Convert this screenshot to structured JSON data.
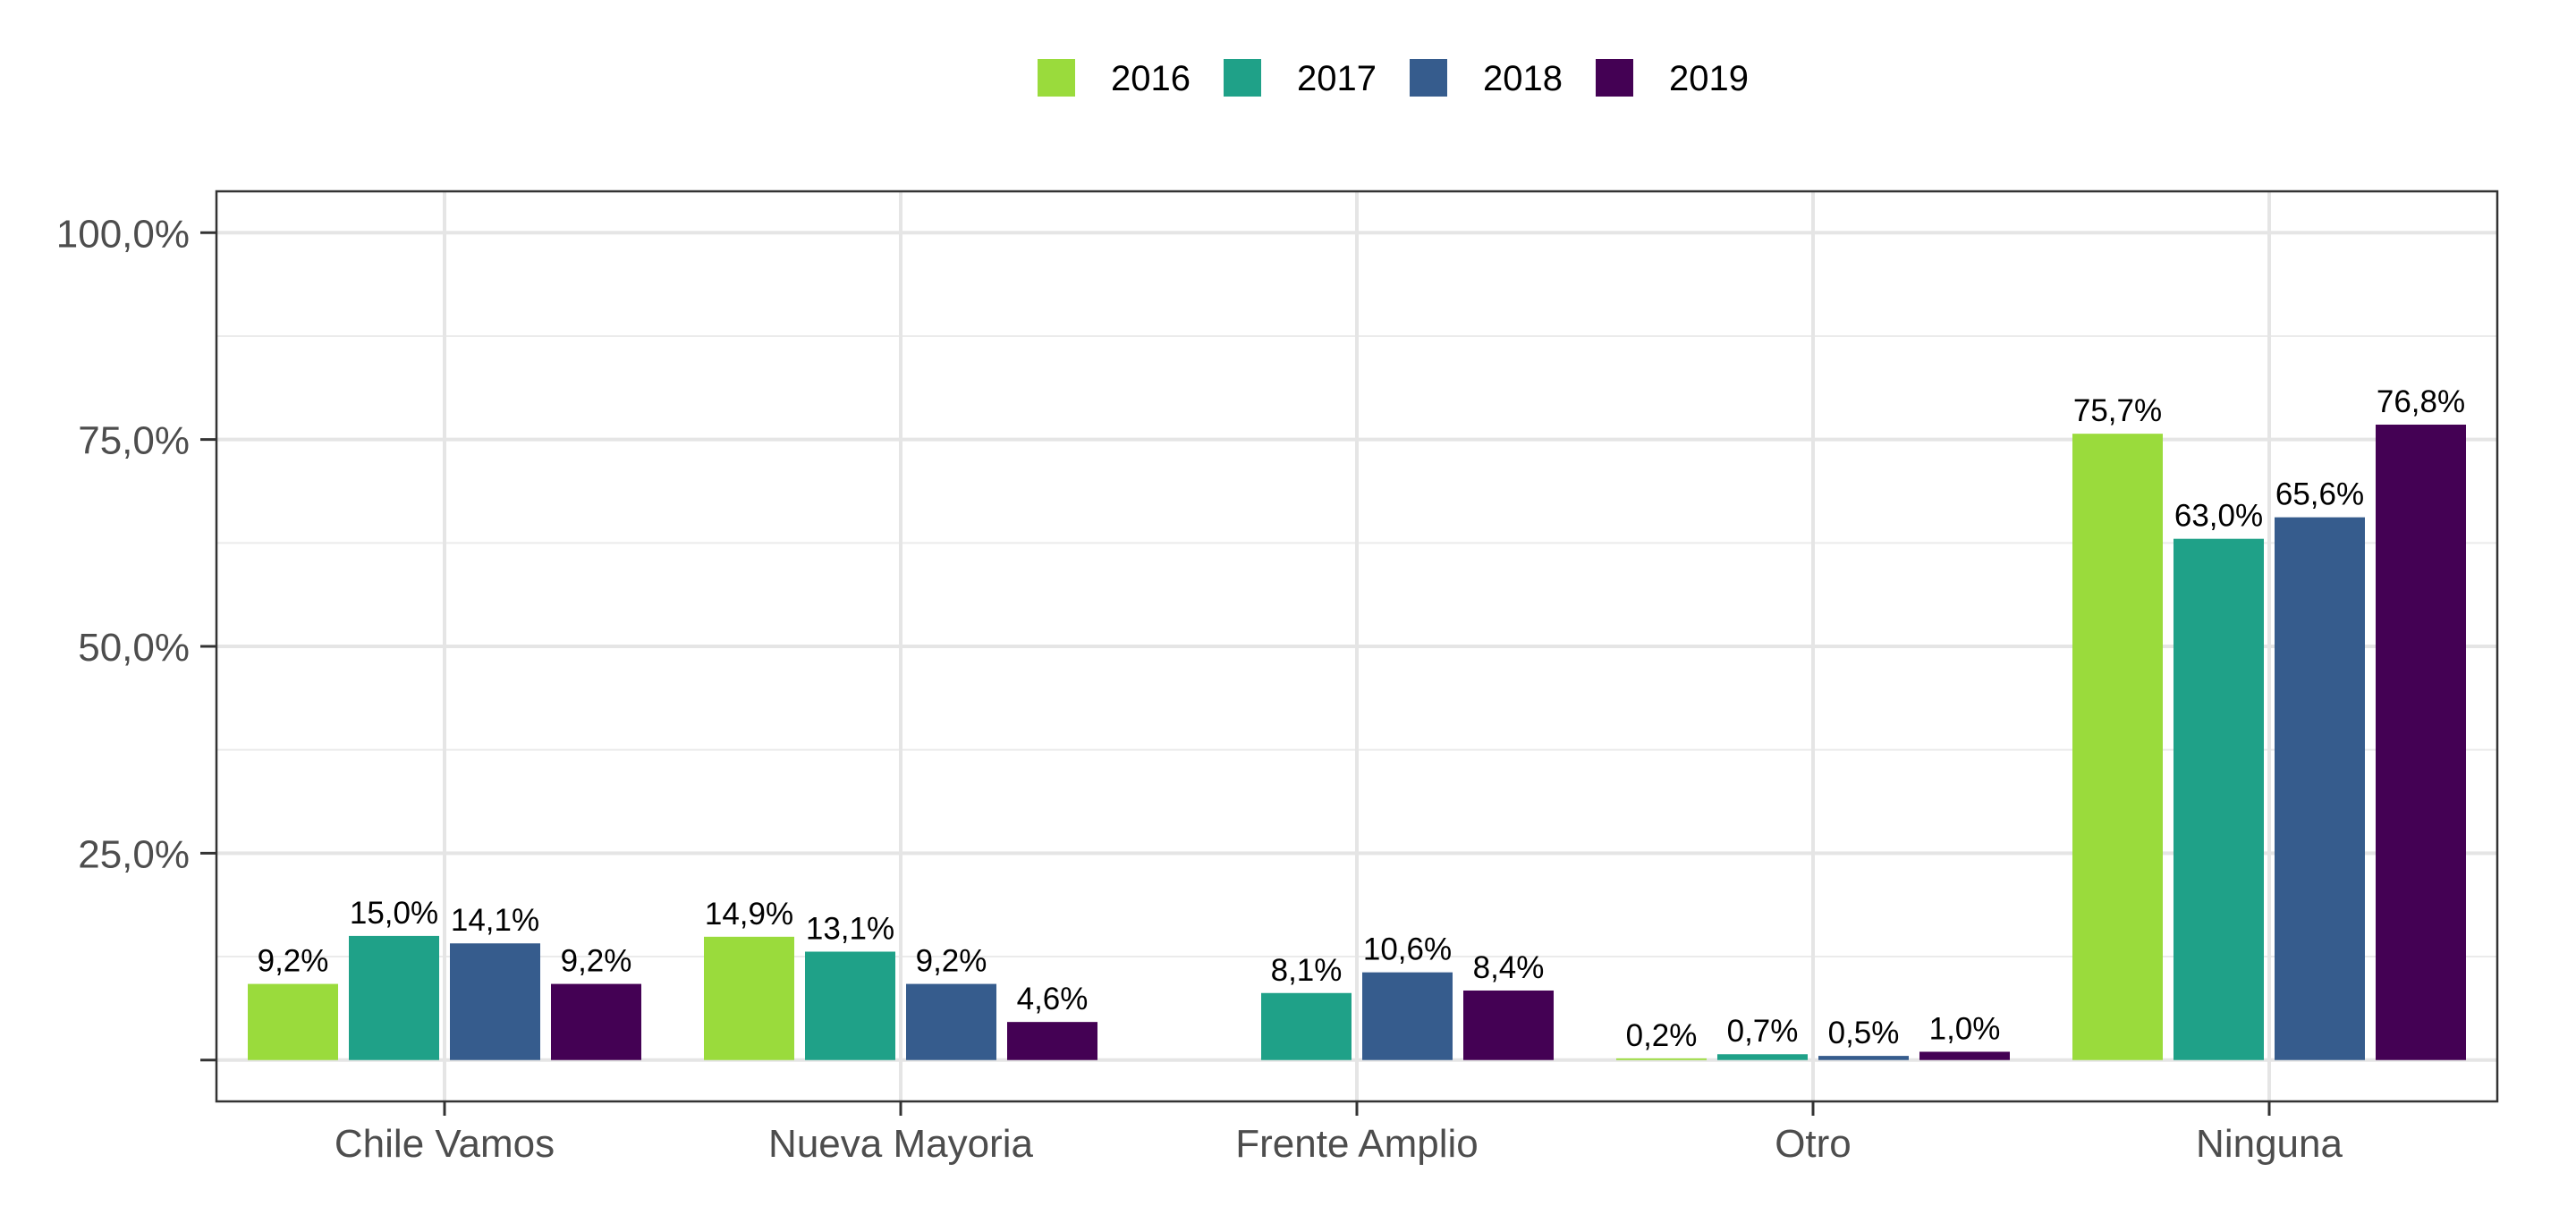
{
  "chart_data": {
    "type": "bar",
    "title": "",
    "xlabel": "",
    "ylabel": "",
    "categories": [
      "Chile Vamos",
      "Nueva Mayoria",
      "Frente Amplio",
      "Otro",
      "Ninguna"
    ],
    "series": [
      {
        "name": "2016",
        "color": "#9ADB3C",
        "values": [
          9.2,
          14.9,
          null,
          0.2,
          75.7
        ],
        "labels": [
          "9,2%",
          "14,9%",
          "",
          "0,2%",
          "75,7%"
        ]
      },
      {
        "name": "2017",
        "color": "#1FA188",
        "values": [
          15.0,
          13.1,
          8.1,
          0.7,
          63.0
        ],
        "labels": [
          "15,0%",
          "13,1%",
          "8,1%",
          "0,7%",
          "63,0%"
        ]
      },
      {
        "name": "2018",
        "color": "#365C8D",
        "values": [
          14.1,
          9.2,
          10.6,
          0.5,
          65.6
        ],
        "labels": [
          "14,1%",
          "9,2%",
          "10,6%",
          "0,5%",
          "65,6%"
        ]
      },
      {
        "name": "2019",
        "color": "#440154",
        "values": [
          9.2,
          4.6,
          8.4,
          1.0,
          76.8
        ],
        "labels": [
          "9,2%",
          "4,6%",
          "8,4%",
          "1,0%",
          "76,8%"
        ]
      }
    ],
    "ylim": [
      -5,
      105
    ],
    "yticks": [
      0,
      25,
      50,
      75,
      100
    ],
    "ytick_labels": [
      "",
      "25,0%",
      "50,0%",
      "75,0%",
      "100,0%"
    ],
    "grid": true,
    "legend_position": "top"
  }
}
